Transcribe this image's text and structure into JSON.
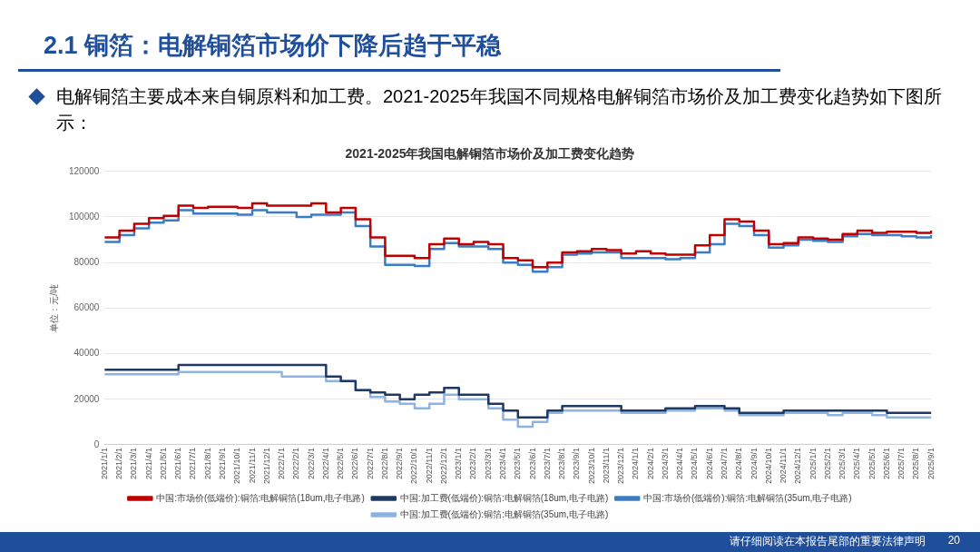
{
  "chart_data": {
    "type": "step",
    "title": "2021-2025年我国电解铜箔市场价及加工费变化趋势",
    "ylabel": "单位：元/吨",
    "annotations": [
      "2.1 铜箔：电解铜箔市场价下降后趋于平稳",
      "电解铜箔主要成本来自铜原料和加工费。2021-2025年我国不同规格电解铜箔市场价及加工费变化趋势如下图所示：",
      "请仔细阅读在本报告尾部的重要法律声明",
      "20"
    ],
    "categories": [
      "2021/1/1",
      "2021/2/1",
      "2021/3/1",
      "2021/4/1",
      "2021/5/1",
      "2021/6/1",
      "2021/7/1",
      "2021/8/1",
      "2021/9/1",
      "2021/10/1",
      "2021/11/1",
      "2021/12/1",
      "2022/1/1",
      "2022/2/1",
      "2022/3/1",
      "2022/4/1",
      "2022/5/1",
      "2022/6/1",
      "2022/7/1",
      "2022/8/1",
      "2022/9/1",
      "2022/10/1",
      "2022/11/1",
      "2022/12/1",
      "2023/1/1",
      "2023/2/1",
      "2023/3/1",
      "2023/4/1",
      "2023/5/1",
      "2023/6/1",
      "2023/7/1",
      "2023/8/1",
      "2023/9/1",
      "2023/10/1",
      "2023/11/1",
      "2023/12/1",
      "2024/1/1",
      "2024/2/1",
      "2024/3/1",
      "2024/4/1",
      "2024/5/1",
      "2024/6/1",
      "2024/7/1",
      "2024/8/1",
      "2024/9/1",
      "2024/10/1",
      "2024/11/1",
      "2024/12/1",
      "2025/1/1",
      "2025/2/1",
      "2025/3/1",
      "2025/4/1",
      "2025/5/1",
      "2025/6/1",
      "2025/7/1",
      "2025/8/1",
      "2025/9/1"
    ],
    "series": [
      {
        "name": "中国:市场价(低端价):铜箔:电解铜箔(18um,电子电路)",
        "color": "#c00000",
        "values": [
          91000,
          94000,
          97000,
          99500,
          100500,
          105000,
          104000,
          104500,
          104500,
          104000,
          106000,
          105000,
          105000,
          105000,
          106000,
          102000,
          104000,
          99000,
          91000,
          83000,
          83000,
          82000,
          88000,
          90500,
          88000,
          89000,
          88000,
          82000,
          81000,
          78000,
          80000,
          84500,
          85000,
          86000,
          85500,
          84000,
          85000,
          84000,
          83500,
          83500,
          87500,
          92000,
          99000,
          98000,
          94000,
          88000,
          88500,
          91000,
          90500,
          90000,
          92500,
          94000,
          93000,
          93500,
          93500,
          93000,
          94000
        ]
      },
      {
        "name": "中国:加工费(低端价):铜箔:电解铜箔(18um,电子电路)",
        "color": "#1f3864",
        "values": [
          33000,
          33000,
          33000,
          33000,
          33000,
          35000,
          35000,
          35000,
          35000,
          35000,
          35000,
          35000,
          35000,
          35000,
          35000,
          30000,
          28000,
          24000,
          23000,
          22000,
          20000,
          22000,
          23000,
          25000,
          22000,
          22000,
          18000,
          15000,
          12000,
          12000,
          15000,
          17000,
          17000,
          17000,
          17000,
          15000,
          15000,
          15000,
          16000,
          16000,
          17000,
          17000,
          16000,
          14000,
          14000,
          14000,
          15000,
          15000,
          15000,
          15000,
          15000,
          15000,
          15000,
          14000,
          14000,
          14000,
          14000
        ]
      },
      {
        "name": "中国:市场价(低端价):铜箔:电解铜箔(35um,电子电路)",
        "color": "#3b7dc4",
        "values": [
          89000,
          92000,
          95000,
          97500,
          98500,
          103000,
          101500,
          101500,
          101500,
          101000,
          103000,
          102000,
          102000,
          100000,
          101000,
          101000,
          102000,
          96000,
          87000,
          79000,
          79000,
          78500,
          86000,
          88500,
          87000,
          87000,
          86000,
          80000,
          79000,
          76000,
          78000,
          83500,
          84000,
          84500,
          84500,
          82000,
          82000,
          82000,
          81500,
          82000,
          84500,
          88000,
          97000,
          96000,
          92000,
          86500,
          87500,
          90000,
          89500,
          89000,
          91500,
          92500,
          92000,
          92000,
          91500,
          91000,
          92000
        ]
      },
      {
        "name": "中国:加工费(低端价):铜箔:电解铜箔(35um,电子电路)",
        "color": "#8db3e2",
        "values": [
          31000,
          31000,
          31000,
          31000,
          31000,
          32000,
          32000,
          32000,
          32000,
          32000,
          32000,
          32000,
          30000,
          30000,
          30000,
          28000,
          28000,
          24000,
          21000,
          19000,
          18000,
          16000,
          18000,
          22000,
          20000,
          20000,
          16000,
          11000,
          8000,
          10000,
          14000,
          15000,
          15000,
          15000,
          15000,
          14000,
          14000,
          14000,
          15000,
          15000,
          16000,
          16000,
          15000,
          13000,
          13000,
          13000,
          14000,
          14000,
          14000,
          13000,
          14000,
          14000,
          13000,
          12000,
          12000,
          12000,
          12000
        ]
      }
    ],
    "ylim": [
      0,
      120000
    ],
    "yticks": [
      0,
      20000,
      40000,
      60000,
      80000,
      100000,
      120000
    ],
    "grid": "y",
    "legend": "bottom"
  }
}
